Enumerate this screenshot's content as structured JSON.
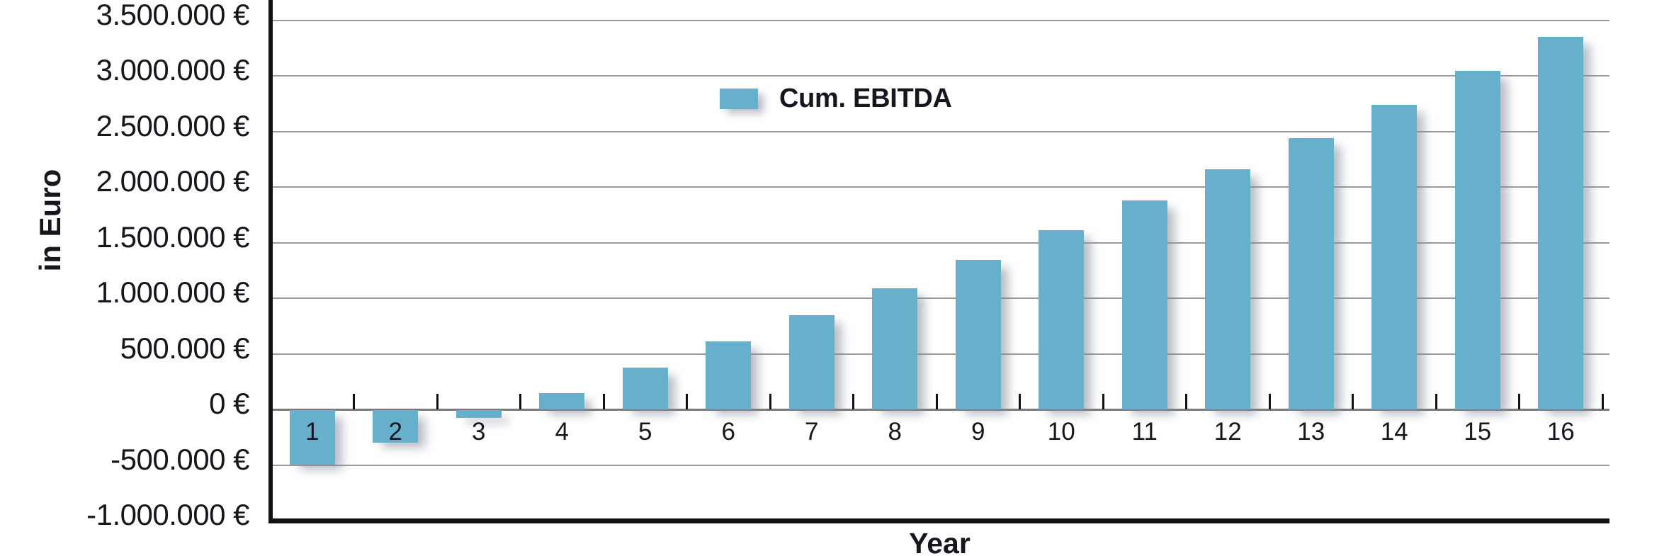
{
  "chart_data": {
    "type": "bar",
    "title": "",
    "xlabel": "Year",
    "ylabel": "in Euro",
    "categories": [
      "1",
      "2",
      "3",
      "4",
      "5",
      "6",
      "7",
      "8",
      "9",
      "10",
      "11",
      "12",
      "13",
      "14",
      "15",
      "16"
    ],
    "series": [
      {
        "name": "Cum. EBITDA",
        "values": [
          -490000,
          -290000,
          -70000,
          145000,
          375000,
          610000,
          845000,
          1090000,
          1345000,
          1610000,
          1880000,
          2160000,
          2440000,
          2740000,
          3045000,
          3350000
        ]
      }
    ],
    "ylim": [
      -1000000,
      3500000
    ],
    "ytick_step": 500000,
    "yticks": [
      {
        "value": 3500000,
        "label": "3.500.000 €"
      },
      {
        "value": 3000000,
        "label": "3.000.000 €"
      },
      {
        "value": 2500000,
        "label": "2.500.000 €"
      },
      {
        "value": 2000000,
        "label": "2.000.000 €"
      },
      {
        "value": 1500000,
        "label": "1.500.000 €"
      },
      {
        "value": 1000000,
        "label": "1.000.000 €"
      },
      {
        "value": 500000,
        "label": "500.000 €"
      },
      {
        "value": 0,
        "label": "0 €"
      },
      {
        "value": -500000,
        "label": "-500.000 €"
      },
      {
        "value": -1000000,
        "label": "-1.000.000 €"
      }
    ],
    "currency_suffix": " €",
    "grid": "horizontal",
    "legend_position": "top-center-inside",
    "legend": {
      "label": "Cum. EBITDA"
    }
  },
  "colors": {
    "bar": "#66b0cb",
    "axis": "#111111",
    "gridline": "#9b9b9b",
    "zero_line": "#7a7a7a",
    "text": "#16161e"
  }
}
